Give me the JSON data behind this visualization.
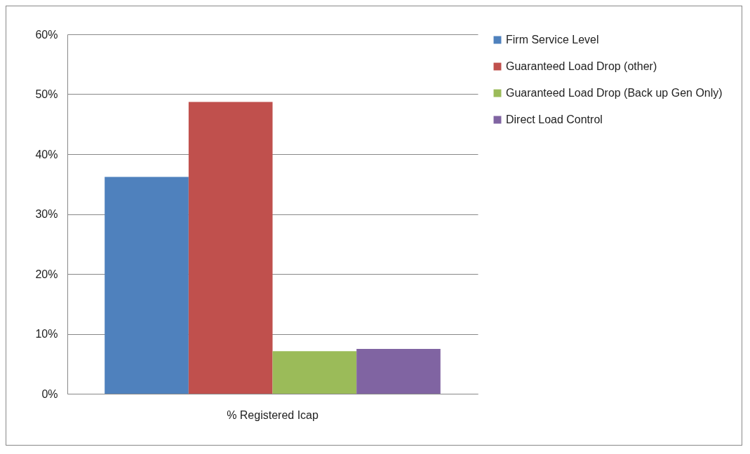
{
  "chart_data": {
    "type": "bar",
    "categories": [
      "% Registered Icap"
    ],
    "series": [
      {
        "name": "Firm Service Level",
        "color": "#4f81bd",
        "values": [
          36.2
        ]
      },
      {
        "name": "Guaranteed Load Drop (other)",
        "color": "#c0504d",
        "values": [
          48.7
        ]
      },
      {
        "name": "Guaranteed Load Drop (Back up Gen Only)",
        "color": "#9bbb59",
        "values": [
          7.1
        ]
      },
      {
        "name": "Direct Load Control",
        "color": "#8064a2",
        "values": [
          7.5
        ]
      }
    ],
    "ylim": [
      0,
      60
    ],
    "yticks": [
      {
        "value": 0,
        "label": "0%"
      },
      {
        "value": 10,
        "label": "10%"
      },
      {
        "value": 20,
        "label": "20%"
      },
      {
        "value": 30,
        "label": "30%"
      },
      {
        "value": 40,
        "label": "40%"
      },
      {
        "value": 50,
        "label": "50%"
      },
      {
        "value": 60,
        "label": "60%"
      }
    ],
    "grid": "y",
    "legend": "right"
  }
}
